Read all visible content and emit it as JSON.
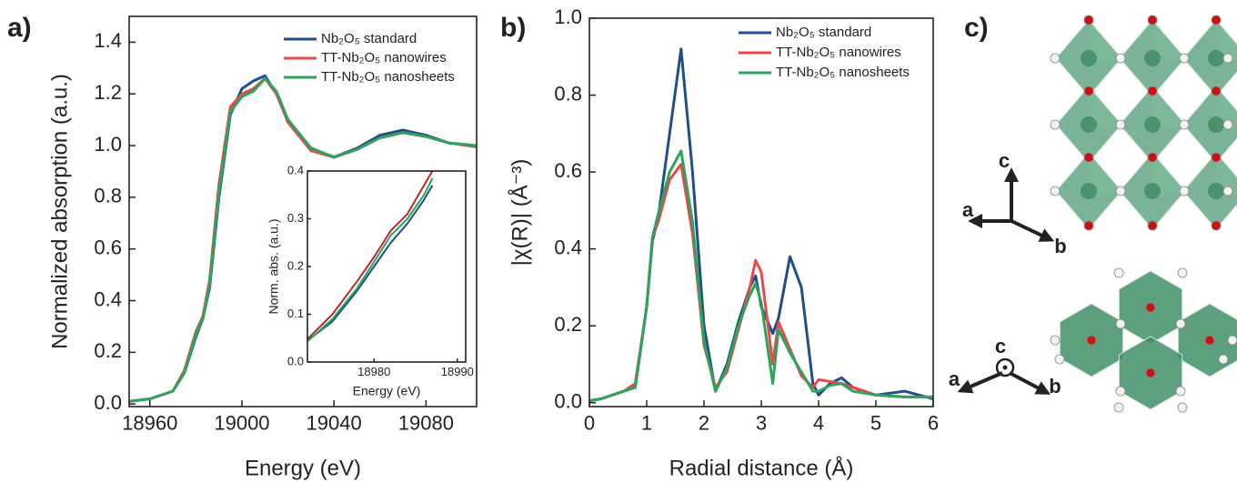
{
  "panels": [
    "a)",
    "b)",
    "c)"
  ],
  "structure": {
    "top_axes": [
      "c",
      "a",
      "b"
    ],
    "bottom_axes": [
      "c",
      "a",
      "b"
    ]
  },
  "chart_data": [
    {
      "type": "line",
      "xlabel": "Energy (eV)",
      "ylabel": "Normalized absorption (a.u.)",
      "xlim": [
        18951,
        19102
      ],
      "ylim": [
        -0.01,
        1.5
      ],
      "xticks": [
        18960,
        19000,
        19040,
        19080
      ],
      "yticks": [
        {
          "value": 0,
          "label": "0.0"
        },
        0.2,
        0.4,
        0.6,
        0.8,
        {
          "value": 1,
          "label": "1.0"
        },
        1.2,
        1.4
      ],
      "x": [
        18951,
        18960,
        18970,
        18975,
        18980,
        18983,
        18986,
        18990,
        18995,
        19000,
        19005,
        19010,
        19015,
        19020,
        19030,
        19040,
        19050,
        19060,
        19070,
        19080,
        19090,
        19102
      ],
      "series": [
        {
          "name": "Nb₂O₅ standard",
          "color": "#1f4e8c",
          "values": [
            0.01,
            0.02,
            0.05,
            0.12,
            0.26,
            0.33,
            0.45,
            0.8,
            1.12,
            1.22,
            1.25,
            1.27,
            1.2,
            1.1,
            0.99,
            0.955,
            0.99,
            1.04,
            1.06,
            1.04,
            1.01,
            1.0
          ]
        },
        {
          "name": "TT-Nb₂O₅ nanowires",
          "color": "#e8484a",
          "values": [
            0.01,
            0.02,
            0.05,
            0.13,
            0.28,
            0.34,
            0.48,
            0.85,
            1.15,
            1.2,
            1.22,
            1.26,
            1.2,
            1.09,
            0.98,
            0.955,
            0.985,
            1.03,
            1.05,
            1.035,
            1.01,
            0.995
          ]
        },
        {
          "name": "TT-Nb₂O₅ nanosheets",
          "color": "#2ea35a",
          "values": [
            0.01,
            0.02,
            0.05,
            0.12,
            0.27,
            0.33,
            0.46,
            0.82,
            1.13,
            1.19,
            1.21,
            1.26,
            1.21,
            1.1,
            0.99,
            0.955,
            0.985,
            1.03,
            1.05,
            1.035,
            1.01,
            1.0
          ]
        }
      ]
    },
    {
      "type": "line",
      "xlabel": "Energy (eV)",
      "ylabel": "Norm. abs. (a.u.)",
      "xlim": [
        18972,
        18991
      ],
      "ylim": [
        0,
        0.4
      ],
      "xticks": [
        18980,
        18990
      ],
      "yticks": [
        {
          "value": 0,
          "label": "0.0"
        },
        0.1,
        0.2,
        0.3,
        0.4
      ],
      "x": [
        18972,
        18975,
        18978,
        18980,
        18982,
        18984,
        18986,
        18987
      ],
      "series": [
        {
          "color": "#1f4e8c",
          "values": [
            0.045,
            0.085,
            0.15,
            0.2,
            0.25,
            0.29,
            0.34,
            0.37
          ]
        },
        {
          "color": "#c0262a",
          "values": [
            0.048,
            0.1,
            0.17,
            0.22,
            0.275,
            0.31,
            0.37,
            0.4
          ]
        },
        {
          "color": "#2ea35a",
          "values": [
            0.043,
            0.09,
            0.155,
            0.21,
            0.265,
            0.3,
            0.35,
            0.385
          ]
        }
      ]
    },
    {
      "type": "line",
      "xlabel": "Radial distance (Å)",
      "ylabel": "|χ(R)| (Å⁻³)",
      "xlim": [
        0,
        6
      ],
      "ylim": [
        -0.01,
        1.0
      ],
      "xticks": [
        0,
        1,
        2,
        3,
        4,
        5,
        6
      ],
      "yticks": [
        {
          "value": 0,
          "label": "0.0"
        },
        0.2,
        0.4,
        0.6,
        0.8,
        {
          "value": 1,
          "label": "1.0"
        }
      ],
      "x": [
        0,
        0.2,
        0.4,
        0.6,
        0.8,
        1.0,
        1.1,
        1.2,
        1.4,
        1.6,
        1.8,
        2.0,
        2.2,
        2.4,
        2.6,
        2.8,
        2.9,
        3.0,
        3.2,
        3.3,
        3.5,
        3.7,
        3.9,
        4.0,
        4.2,
        4.4,
        4.6,
        5.0,
        5.5,
        6.0
      ],
      "series": [
        {
          "name": "Nb₂O₅ standard",
          "color": "#1f4e8c",
          "values": [
            0.005,
            0.01,
            0.02,
            0.03,
            0.04,
            0.25,
            0.42,
            0.48,
            0.7,
            0.92,
            0.6,
            0.2,
            0.03,
            0.1,
            0.21,
            0.3,
            0.33,
            0.25,
            0.18,
            0.22,
            0.38,
            0.3,
            0.05,
            0.02,
            0.05,
            0.065,
            0.04,
            0.02,
            0.03,
            0.01
          ]
        },
        {
          "name": "TT-Nb₂O₅ nanowires",
          "color": "#e8484a",
          "values": [
            0.005,
            0.01,
            0.02,
            0.03,
            0.05,
            0.25,
            0.43,
            0.47,
            0.58,
            0.62,
            0.44,
            0.15,
            0.04,
            0.08,
            0.19,
            0.3,
            0.37,
            0.34,
            0.1,
            0.21,
            0.14,
            0.07,
            0.04,
            0.06,
            0.055,
            0.05,
            0.04,
            0.02,
            0.015,
            0.015
          ]
        },
        {
          "name": "TT-Nb₂O₅ nanosheets",
          "color": "#2ea35a",
          "values": [
            0.005,
            0.01,
            0.02,
            0.03,
            0.04,
            0.25,
            0.43,
            0.49,
            0.6,
            0.655,
            0.47,
            0.16,
            0.03,
            0.09,
            0.2,
            0.28,
            0.31,
            0.26,
            0.05,
            0.19,
            0.13,
            0.08,
            0.03,
            0.03,
            0.045,
            0.05,
            0.03,
            0.02,
            0.015,
            0.015
          ]
        }
      ]
    }
  ]
}
